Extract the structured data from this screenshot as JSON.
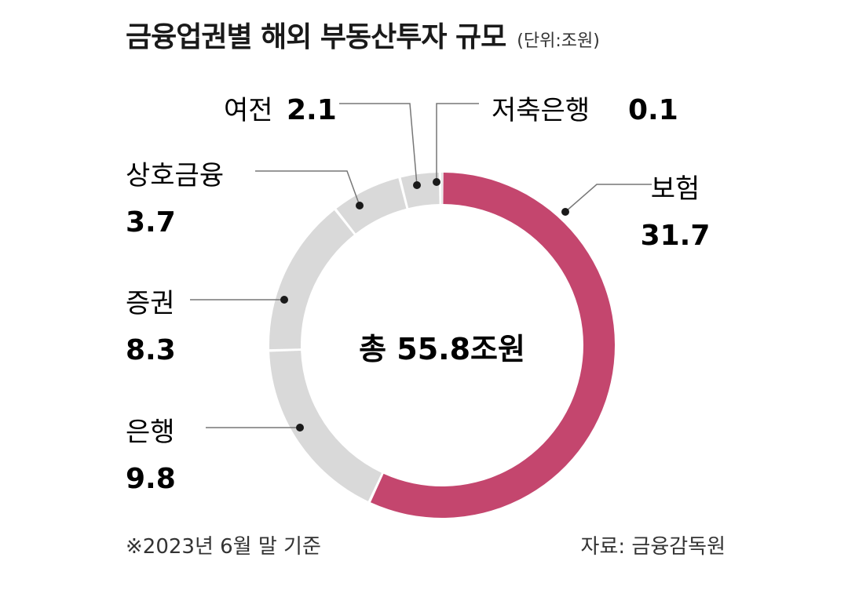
{
  "title": "금융업권별 해외 부동산투자 규모",
  "unit": "(단위:조원)",
  "total_label": "총 55.8조원",
  "footnote": "※2023년 6월 말 기준",
  "source": "자료: 금융감독원",
  "colors": {
    "highlight": "#c4466e",
    "other": "#d9d9d9",
    "line": "#1a1a1a"
  },
  "chart_data": {
    "type": "pie",
    "style": "donut",
    "total": 55.8,
    "slices": [
      {
        "name": "보험",
        "value": 31.7,
        "color": "#c4466e"
      },
      {
        "name": "은행",
        "value": 9.8,
        "color": "#d9d9d9"
      },
      {
        "name": "증권",
        "value": 8.3,
        "color": "#d9d9d9"
      },
      {
        "name": "상호금융",
        "value": 3.7,
        "color": "#d9d9d9"
      },
      {
        "name": "여전",
        "value": 2.1,
        "color": "#d9d9d9"
      },
      {
        "name": "저축은행",
        "value": 0.1,
        "color": "#d9d9d9"
      }
    ]
  }
}
